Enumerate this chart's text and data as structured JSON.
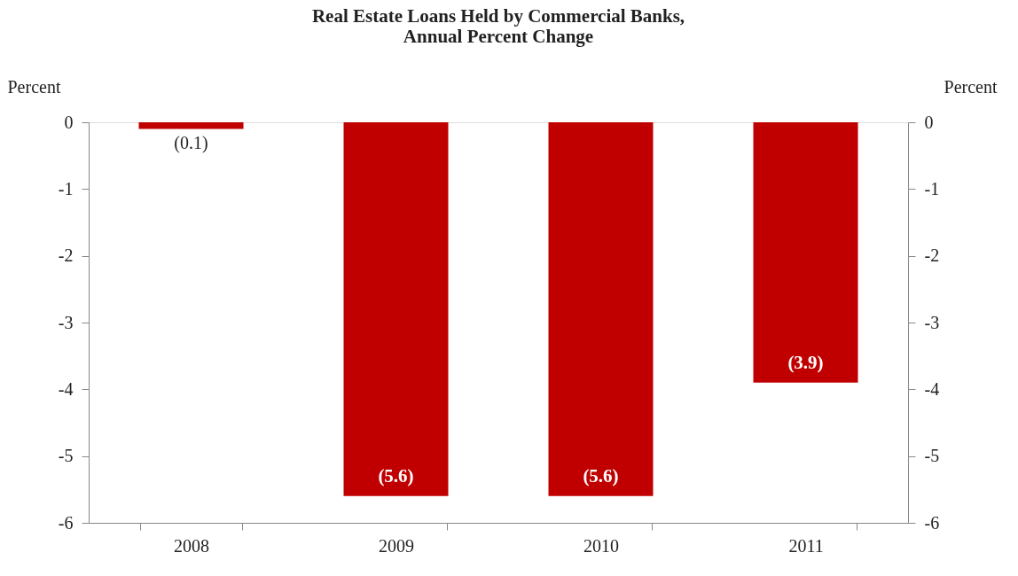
{
  "chart_data": {
    "type": "bar",
    "title": "Real Estate Loans Held by Commercial Banks,\nAnnual Percent Change",
    "ylabel": "Percent",
    "y2label": "Percent",
    "categories": [
      "2008",
      "2009",
      "2010",
      "2011"
    ],
    "values": [
      -0.1,
      -5.6,
      -5.6,
      -3.9
    ],
    "color": "#c00000",
    "value_labels": [
      "(0.1)",
      "(5.6)",
      "(5.6)",
      "(3.9)"
    ],
    "ylim": [
      -6,
      0
    ],
    "yticks": [
      -6,
      -5,
      -4,
      -3,
      -2,
      -1,
      0
    ],
    "y2lim": [
      -6,
      0
    ],
    "y2ticks": [
      -6,
      -5,
      -4,
      -3,
      -2,
      -1,
      0
    ]
  }
}
